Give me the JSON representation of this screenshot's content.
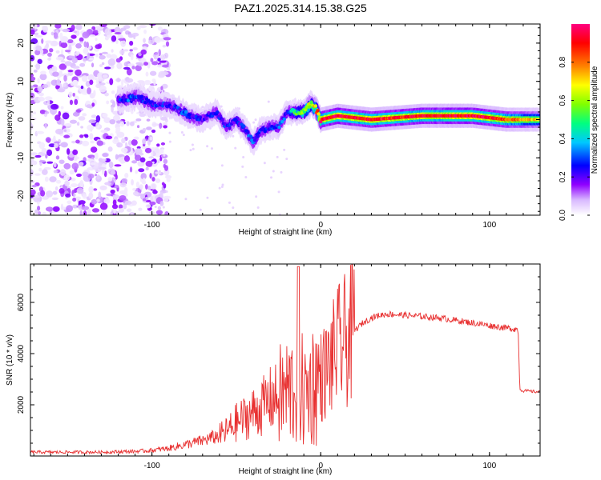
{
  "title": "PAZ1.2025.314.15.38.G25",
  "colors": {
    "snr_line": "#e83030",
    "axis": "#000000",
    "colormap": [
      "#ffffff",
      "#d8b8ff",
      "#9000ff",
      "#0000ff",
      "#00c8ff",
      "#00ff80",
      "#80ff00",
      "#ffff00",
      "#ff8000",
      "#ff0000",
      "#ff0080"
    ]
  },
  "chart_data": [
    {
      "type": "heatmap",
      "name": "spectrogram",
      "xlabel": "Height of straight line (km)",
      "ylabel": "Frequency (Hz)",
      "xlim": [
        -172,
        130
      ],
      "ylim": [
        -25,
        25
      ],
      "x_ticks": [
        -100,
        0,
        100
      ],
      "x_tick_labels": [
        "-100",
        "0",
        "100"
      ],
      "y_ticks": [
        -20,
        -10,
        0,
        10,
        20
      ],
      "y_tick_labels": [
        "-20",
        "-10",
        "0",
        "10",
        "20"
      ],
      "colorbar": {
        "label": "Normalized spectral amplitude",
        "range": [
          0,
          1
        ],
        "ticks": [
          0,
          0.2,
          0.4,
          0.6,
          0.8
        ],
        "tick_labels": [
          "0.0",
          "0.2",
          "0.4",
          "0.6",
          "0.8"
        ]
      },
      "ridge": {
        "description_x": [
          -120,
          -108,
          -100,
          -92,
          -85,
          -78,
          -70,
          -62,
          -56,
          -50,
          -44,
          -40,
          -36,
          -30,
          -25,
          -20,
          -15,
          -10,
          -6,
          -3,
          0,
          10,
          30,
          60,
          90,
          110,
          130
        ],
        "frequency_hz": [
          5,
          6,
          4,
          4,
          3,
          1,
          0,
          2,
          -2,
          0,
          -3,
          -6,
          -3,
          -2,
          -2,
          2,
          2,
          2,
          4,
          3,
          0,
          1,
          0,
          1,
          1,
          0,
          0
        ],
        "peak_amplitude": [
          0.3,
          0.35,
          0.3,
          0.3,
          0.3,
          0.35,
          0.25,
          0.3,
          0.3,
          0.3,
          0.3,
          0.35,
          0.3,
          0.3,
          0.35,
          0.3,
          0.5,
          0.55,
          0.7,
          0.7,
          0.9,
          0.95,
          0.9,
          0.9,
          0.95,
          0.85,
          0.7
        ]
      },
      "noise_region_x": [
        -172,
        -95
      ]
    },
    {
      "type": "line",
      "name": "snr",
      "xlabel": "Height of straight line (km)",
      "ylabel": "SNR (10 * v/v)",
      "xlim": [
        -172,
        130
      ],
      "ylim": [
        0,
        7500
      ],
      "x_ticks": [
        -100,
        0,
        100
      ],
      "x_tick_labels": [
        "-100",
        "0",
        "100"
      ],
      "y_ticks": [
        2000,
        4000,
        6000
      ],
      "y_tick_labels": [
        "2000",
        "4000",
        "6000"
      ],
      "series": [
        {
          "name": "SNR",
          "x": [
            -172,
            -150,
            -130,
            -110,
            -100,
            -90,
            -80,
            -70,
            -60,
            -55,
            -50,
            -45,
            -40,
            -35,
            -30,
            -25,
            -20,
            -15,
            -12,
            -10,
            -8,
            -5,
            0,
            5,
            10,
            15,
            20,
            25,
            30,
            35,
            40,
            50,
            60,
            70,
            80,
            90,
            100,
            110,
            117,
            118,
            120,
            130
          ],
          "y": [
            150,
            150,
            150,
            180,
            220,
            300,
            450,
            600,
            800,
            1000,
            1300,
            1500,
            1700,
            1900,
            2200,
            2300,
            2500,
            2700,
            2800,
            2300,
            2500,
            2800,
            3100,
            3500,
            4200,
            4500,
            4900,
            5200,
            5400,
            5500,
            5550,
            5500,
            5450,
            5400,
            5300,
            5200,
            5100,
            5000,
            4950,
            2600,
            2550,
            2500
          ]
        }
      ]
    }
  ]
}
